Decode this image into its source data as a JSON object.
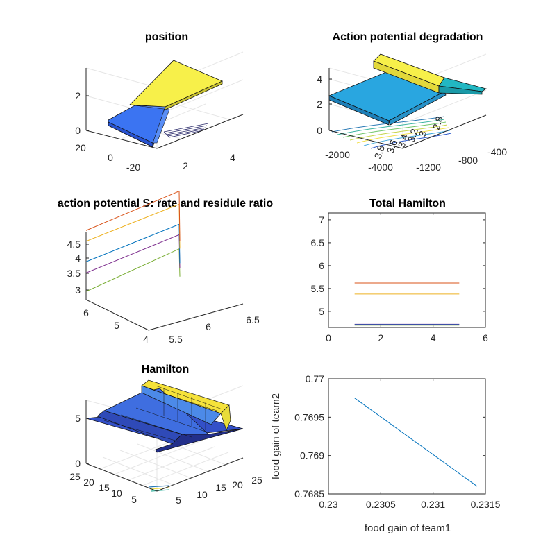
{
  "chart_data": [
    {
      "type": "surface",
      "title": "position",
      "xlim": [
        -30,
        30
      ],
      "ylim": [
        1,
        5
      ],
      "zlim": [
        0,
        3.6
      ],
      "x_ticks": [
        "20",
        "0",
        "-20"
      ],
      "y_ticks": [
        "2",
        "4"
      ],
      "z_ticks": [
        "0",
        "2"
      ],
      "grid": true,
      "colors": [
        "#4f7ff7",
        "#f5f542",
        "#1c2a8c"
      ]
    },
    {
      "type": "surface",
      "title": "Action potential degradation",
      "xlim": [
        -2400,
        -300
      ],
      "zlim": [
        0,
        5
      ],
      "x_ticks": [
        "-2000",
        "-4000"
      ],
      "y_ticks": [
        "-1200",
        "-800",
        "-400"
      ],
      "z_ticks": [
        "0",
        "2",
        "4"
      ],
      "contour_labels": [
        "3.8",
        "3.6",
        "3.4",
        "3.2",
        "3",
        "2.8"
      ],
      "grid": true,
      "colors": [
        "#2ea8df",
        "#f5f542",
        "#1fb8b8"
      ]
    },
    {
      "type": "line",
      "title": "action potential S: rate and residule ratio",
      "x_ticks": [
        "6",
        "5",
        "4"
      ],
      "y_ticks": [
        "5.5",
        "6",
        "6.5"
      ],
      "z_ticks": [
        "3",
        "3.5",
        "4",
        "4.5"
      ],
      "zlim": [
        2.7,
        4.9
      ],
      "series": [
        {
          "values": [
            2.92,
            3.32
          ],
          "color": "#77ac30"
        },
        {
          "values": [
            3.42,
            3.7
          ],
          "color": "#7e2f8e"
        },
        {
          "values": [
            3.72,
            3.98
          ],
          "color": "#0072bd"
        },
        {
          "values": [
            4.27,
            4.52
          ],
          "color": "#edb120"
        },
        {
          "values": [
            4.56,
            4.87
          ],
          "color": "#d95319"
        }
      ],
      "grid": false
    },
    {
      "type": "line",
      "title": "Total Hamilton",
      "xlim": [
        0,
        6
      ],
      "ylim": [
        4.65,
        7.15
      ],
      "x_ticks": [
        0,
        2,
        4,
        6
      ],
      "y_ticks": [
        5,
        5.5,
        6,
        6.5,
        7
      ],
      "x": [
        1,
        2,
        3,
        4,
        5
      ],
      "series": [
        {
          "values": [
            5.62,
            5.62,
            5.62,
            5.62,
            5.62
          ],
          "color": "#d95319"
        },
        {
          "values": [
            5.38,
            5.38,
            5.38,
            5.38,
            5.38
          ],
          "color": "#edb120"
        },
        {
          "values": [
            4.72,
            4.72,
            4.72,
            4.72,
            4.72
          ],
          "color": "#7e2f8e"
        },
        {
          "values": [
            4.71,
            4.71,
            4.71,
            4.71,
            4.71
          ],
          "color": "#0072bd"
        },
        {
          "values": [
            4.7,
            4.7,
            4.7,
            4.7,
            4.7
          ],
          "color": "#77ac30"
        }
      ],
      "grid": false
    },
    {
      "type": "surface",
      "title": "Hamilton",
      "xlim": [
        1,
        25
      ],
      "ylim": [
        1,
        25
      ],
      "zlim": [
        0,
        7
      ],
      "x_ticks": [
        "25",
        "20",
        "15",
        "10",
        "5"
      ],
      "y_ticks": [
        "5",
        "10",
        "15",
        "20",
        "25"
      ],
      "z_ticks": [
        "0",
        "5"
      ],
      "grid": true,
      "colors": [
        "#3b64d8",
        "#5ec8b0",
        "#f5f542",
        "#1c2a8c"
      ]
    },
    {
      "type": "line",
      "title": "",
      "xlabel": "food gain of team1",
      "ylabel": "food gain of team2",
      "xlim": [
        0.23,
        0.2315
      ],
      "ylim": [
        0.7685,
        0.77
      ],
      "x_ticks": [
        "0.23",
        "0.2305",
        "0.231",
        "0.2315"
      ],
      "y_ticks": [
        "0.7685",
        "0.769",
        "0.7695",
        "0.77"
      ],
      "x": [
        0.23025,
        0.23142
      ],
      "series": [
        {
          "values": [
            0.76975,
            0.7686
          ],
          "color": "#0072bd"
        }
      ],
      "grid": false
    }
  ]
}
